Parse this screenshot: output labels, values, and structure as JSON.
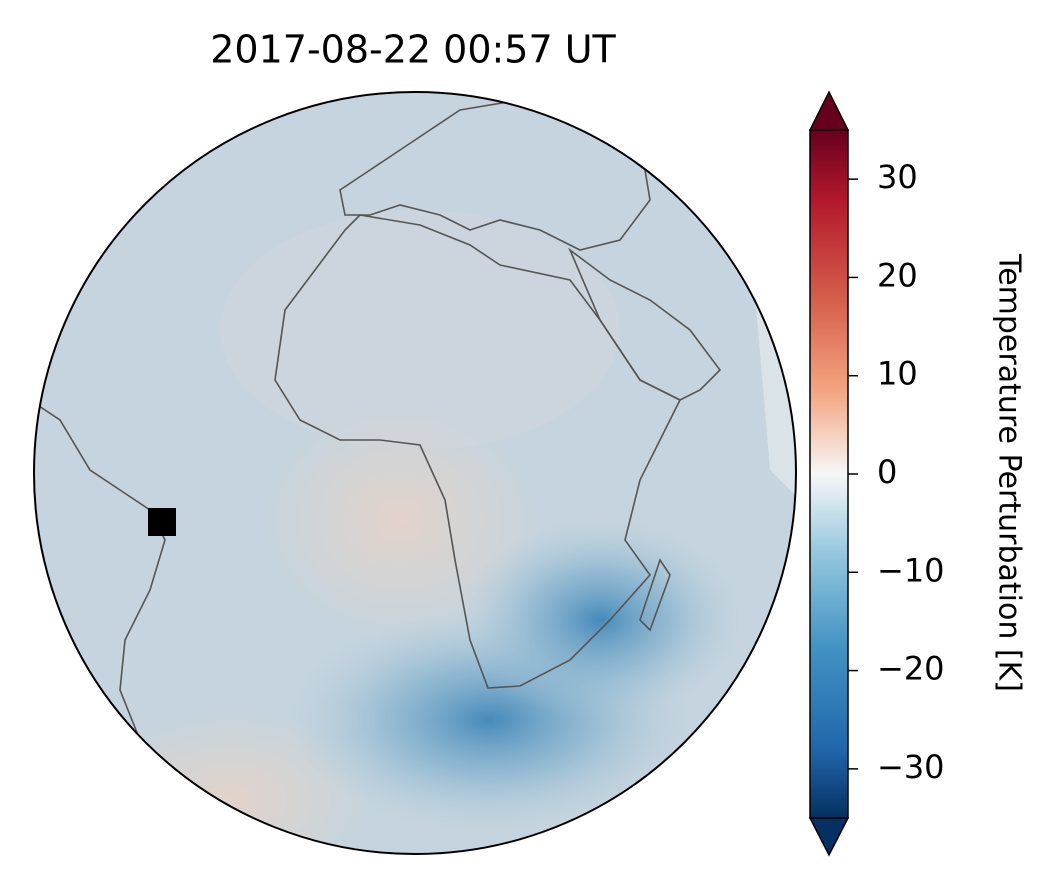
{
  "map": {
    "title": "2017-08-22  00:57 UT",
    "colorbar": {
      "label": "Temperature Perturbation [K]",
      "lim": [
        -35,
        35
      ],
      "ticks": [
        30,
        20,
        10,
        0,
        {
          "value": -10,
          "label": "−10"
        },
        {
          "value": -20,
          "label": "−20"
        },
        {
          "value": -30,
          "label": "−30"
        }
      ]
    }
  }
}
